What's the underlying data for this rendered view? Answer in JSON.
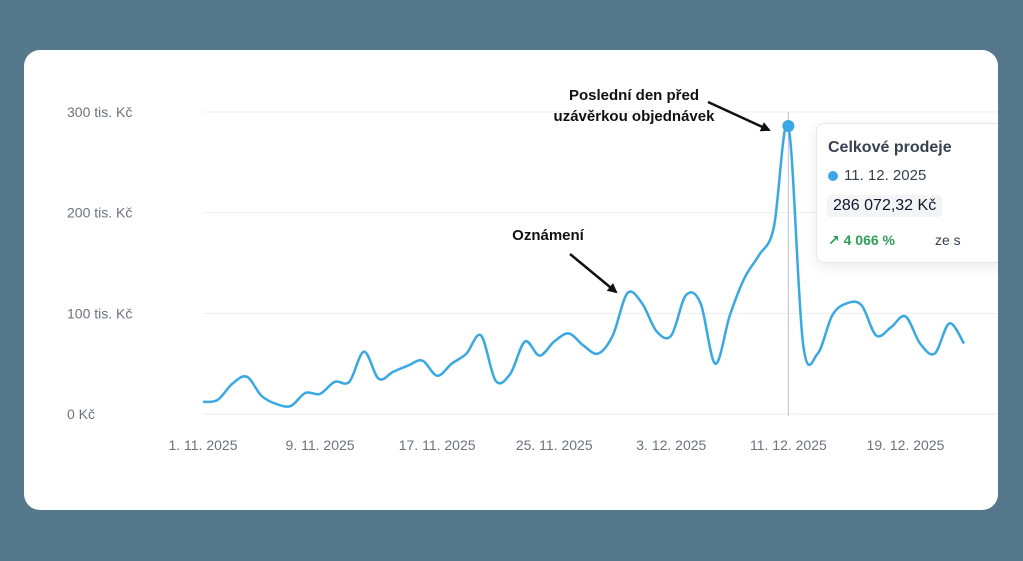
{
  "chart_data": {
    "type": "line",
    "ylim": [
      0,
      300000
    ],
    "y_ticks": [
      {
        "value": 0,
        "label": "0 Kč"
      },
      {
        "value": 100000,
        "label": "100 tis. Kč"
      },
      {
        "value": 200000,
        "label": "200 tis. Kč"
      },
      {
        "value": 300000,
        "label": "300 tis. Kč"
      }
    ],
    "x_ticks": [
      {
        "index": 0,
        "label": "1. 11. 2025"
      },
      {
        "index": 8,
        "label": "9. 11. 2025"
      },
      {
        "index": 16,
        "label": "17. 11. 2025"
      },
      {
        "index": 24,
        "label": "25. 11. 2025"
      },
      {
        "index": 32,
        "label": "3. 12. 2025"
      },
      {
        "index": 40,
        "label": "11. 12. 2025"
      },
      {
        "index": 48,
        "label": "19. 12. 2025"
      }
    ],
    "grid": true,
    "series": [
      {
        "name": "Celkové prodeje",
        "color": "#3aa8e3",
        "values": [
          12000,
          14000,
          30000,
          37000,
          18000,
          10000,
          8000,
          21000,
          20000,
          32000,
          32000,
          62000,
          35000,
          42000,
          48000,
          53000,
          38000,
          50000,
          60000,
          78000,
          33000,
          40000,
          72000,
          58000,
          72000,
          80000,
          68000,
          60000,
          78000,
          120000,
          110000,
          82000,
          78000,
          118000,
          110000,
          50000,
          98000,
          135000,
          158000,
          185000,
          286072.32,
          70000,
          60000,
          98000,
          110000,
          108000,
          78000,
          86000,
          97000,
          70000,
          60000,
          90000,
          70000
        ]
      }
    ],
    "annotations": [
      {
        "text_lines": [
          "Poslední den před",
          "uzávěrkou objednávek"
        ],
        "target_index": 40
      },
      {
        "text_lines": [
          "Oznámení"
        ],
        "target_index": 29
      }
    ],
    "highlight": {
      "index": 40,
      "date": "11. 12. 2025",
      "value": 286072.32
    }
  },
  "tooltip": {
    "title": "Celkové prodeje",
    "date": "11. 12. 2025",
    "value": "286 072,32 Kč",
    "change": "↗ 4 066 %",
    "compare": "ze s"
  }
}
